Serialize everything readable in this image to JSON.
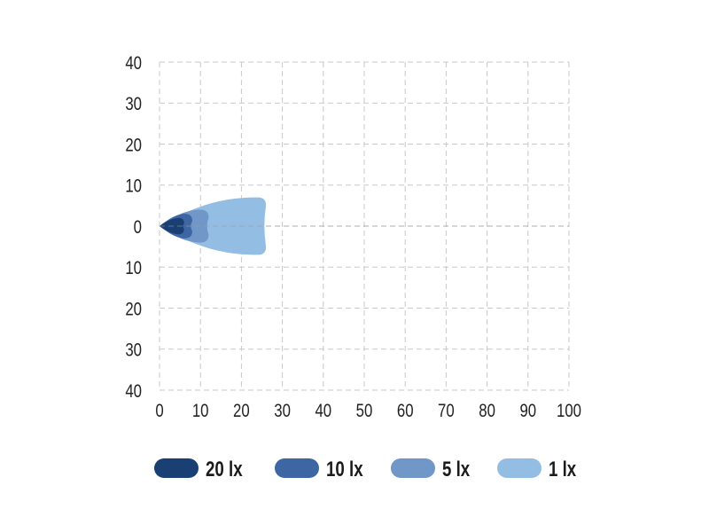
{
  "chart_data": {
    "type": "area",
    "title": "",
    "xlabel": "",
    "ylabel": "",
    "xlim": [
      0,
      100
    ],
    "ylim": [
      -40,
      40
    ],
    "x_ticks": [
      "0",
      "10",
      "20",
      "30",
      "40",
      "50",
      "60",
      "70",
      "80",
      "90",
      "100"
    ],
    "y_ticks": [
      "40",
      "30",
      "20",
      "10",
      "0",
      "10",
      "20",
      "30",
      "40"
    ],
    "grid": true,
    "legend_position": "bottom",
    "series": [
      {
        "name": "1 lx",
        "color": "#94bde4",
        "reach": 26,
        "half_width": 7
      },
      {
        "name": "5 lx",
        "color": "#7097c8",
        "reach": 12,
        "half_width": 4
      },
      {
        "name": "10 lx",
        "color": "#3d66a2",
        "reach": 8,
        "half_width": 3
      },
      {
        "name": "20 lx",
        "color": "#1a3f73",
        "reach": 6,
        "half_width": 2
      }
    ],
    "legend_order": [
      3,
      2,
      1,
      0
    ]
  }
}
